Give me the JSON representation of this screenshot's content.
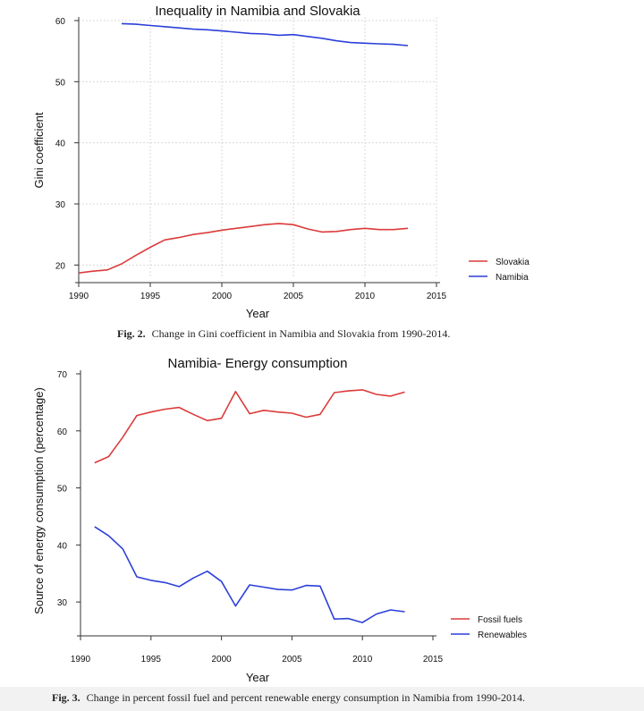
{
  "chart_data": [
    {
      "type": "line",
      "title": "Inequality in Namibia and Slovakia",
      "xlabel": "Year",
      "ylabel": "Gini coefficient",
      "xlim": [
        1990,
        2015
      ],
      "ylim": [
        18,
        60
      ],
      "x_ticks": [
        "1990",
        "1995",
        "2000",
        "2005",
        "2010",
        "2015"
      ],
      "y_ticks": [
        "20",
        "30",
        "40",
        "50",
        "60"
      ],
      "legend_position": "right",
      "grid": true,
      "series": [
        {
          "name": "Slovakia",
          "color": "#dc3b3b",
          "x": [
            1990,
            1991,
            1992,
            1993,
            1994,
            1995,
            1996,
            1997,
            1998,
            1999,
            2000,
            2001,
            2002,
            2003,
            2004,
            2005,
            2006,
            2007,
            2008,
            2009,
            2010,
            2011,
            2012,
            2013
          ],
          "values": [
            18.7,
            19.0,
            19.2,
            20.2,
            21.6,
            22.9,
            24.1,
            24.5,
            25.0,
            25.3,
            25.7,
            26.0,
            26.3,
            26.6,
            26.8,
            26.6,
            25.9,
            25.4,
            25.5,
            25.8,
            26.0,
            25.8,
            25.8,
            26.0
          ]
        },
        {
          "name": "Namibia",
          "color": "#2c3fd9",
          "x": [
            1993,
            1994,
            1995,
            1996,
            1997,
            1998,
            1999,
            2000,
            2001,
            2002,
            2003,
            2004,
            2005,
            2006,
            2007,
            2008,
            2009,
            2010,
            2011,
            2012,
            2013
          ],
          "values": [
            59.5,
            59.4,
            59.2,
            59.0,
            58.8,
            58.6,
            58.5,
            58.3,
            58.1,
            57.9,
            57.8,
            57.6,
            57.7,
            57.4,
            57.1,
            56.7,
            56.4,
            56.3,
            56.2,
            56.1,
            55.9
          ]
        }
      ]
    },
    {
      "type": "line",
      "title": "Namibia- Energy consumption",
      "xlabel": "Year",
      "ylabel": "Source of energy consumption (percentage)",
      "xlim": [
        1990,
        2015
      ],
      "ylim": [
        25,
        70
      ],
      "x_ticks": [
        "1990",
        "1995",
        "2000",
        "2005",
        "2010",
        "2015"
      ],
      "y_ticks": [
        "30",
        "40",
        "50",
        "60",
        "70"
      ],
      "legend_position": "right",
      "grid": false,
      "series": [
        {
          "name": "Fossil fuels",
          "color": "#dc3b3b",
          "x": [
            1991,
            1992,
            1993,
            1994,
            1995,
            1996,
            1997,
            1998,
            1999,
            2000,
            2001,
            2002,
            2003,
            2004,
            2005,
            2006,
            2007,
            2008,
            2009,
            2010,
            2011,
            2012,
            2013
          ],
          "values": [
            54.4,
            55.5,
            58.9,
            62.7,
            63.3,
            63.8,
            64.1,
            62.9,
            61.8,
            62.2,
            66.9,
            63.0,
            63.6,
            63.3,
            63.1,
            62.4,
            62.9,
            66.7,
            67.0,
            67.2,
            66.4,
            66.1,
            66.8
          ]
        },
        {
          "name": "Renewables",
          "color": "#2c3fd9",
          "x": [
            1991,
            1992,
            1993,
            1994,
            1995,
            1996,
            1997,
            1998,
            1999,
            2000,
            2001,
            2002,
            2003,
            2004,
            2005,
            2006,
            2007,
            2008,
            2009,
            2010,
            2011,
            2012,
            2013
          ],
          "values": [
            43.2,
            41.6,
            39.3,
            34.4,
            33.8,
            33.4,
            32.7,
            34.2,
            35.4,
            33.6,
            29.3,
            33.0,
            32.6,
            32.2,
            32.1,
            32.9,
            32.8,
            27.0,
            27.1,
            26.4,
            27.9,
            28.6,
            28.3
          ]
        }
      ]
    }
  ],
  "captions": [
    {
      "label": "Fig. 2.",
      "text": "Change in Gini coefficient in Namibia and Slovakia from 1990-2014."
    },
    {
      "label": "Fig. 3.",
      "text": "Change in percent fossil fuel and percent renewable energy consumption in Namibia from 1990-2014."
    }
  ]
}
